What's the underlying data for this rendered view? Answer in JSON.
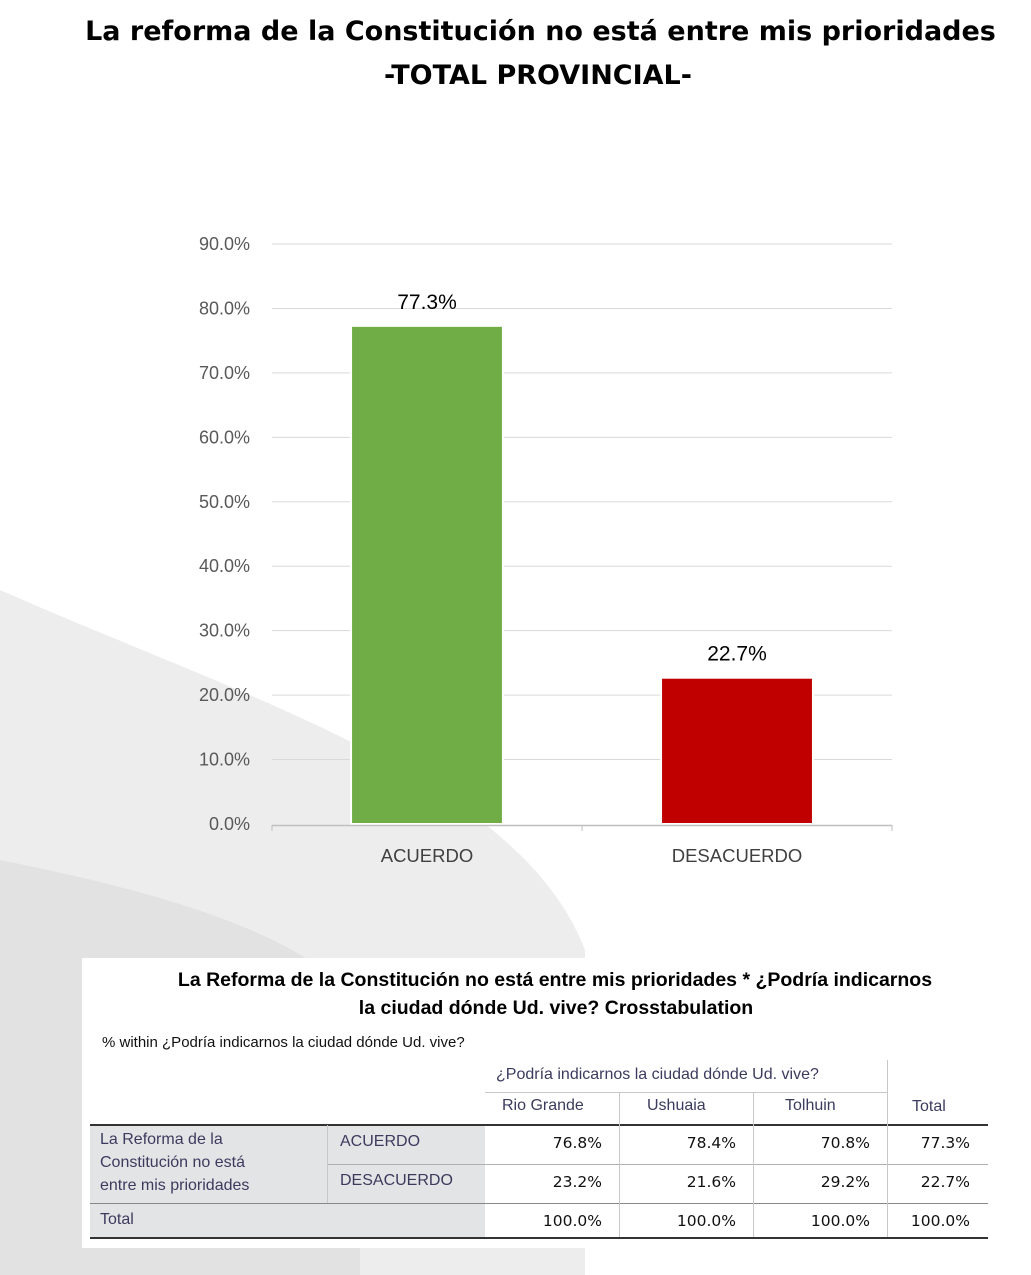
{
  "title": {
    "line1": "La reforma de la Constitución no está entre mis prioridades",
    "line2": "-TOTAL PROVINCIAL-"
  },
  "chart_data": {
    "type": "bar",
    "categories": [
      "ACUERDO",
      "DESACUERDO"
    ],
    "values": [
      77.3,
      22.7
    ],
    "data_labels": [
      "77.3%",
      "22.7%"
    ],
    "colors": [
      "#70ad47",
      "#c00000"
    ],
    "yticks": [
      "0.0%",
      "10.0%",
      "20.0%",
      "30.0%",
      "40.0%",
      "50.0%",
      "60.0%",
      "70.0%",
      "80.0%",
      "90.0%"
    ],
    "ylim": [
      0,
      90
    ],
    "grid": true,
    "legend": "none"
  },
  "crosstab": {
    "title_line1": "La Reforma de la Constitución no está entre mis prioridades * ¿Podría indicarnos",
    "title_line2": "la ciudad dónde Ud. vive? Crosstabulation",
    "note": "% within ¿Podría indicarnos la ciudad dónde Ud. vive?",
    "column_group": "¿Podría indicarnos la ciudad dónde Ud. vive?",
    "columns": [
      "Rio Grande",
      "Ushuaia",
      "Tolhuin",
      "Total"
    ],
    "row_group_lines": [
      "La Reforma de la",
      "Constitución no está",
      "entre mis prioridades"
    ],
    "rows": [
      {
        "label": "ACUERDO",
        "values": [
          "76.8%",
          "78.4%",
          "70.8%",
          "77.3%"
        ]
      },
      {
        "label": "DESACUERDO",
        "values": [
          "23.2%",
          "21.6%",
          "29.2%",
          "22.7%"
        ]
      }
    ],
    "total_label": "Total",
    "total_values": [
      "100.0%",
      "100.0%",
      "100.0%",
      "100.0%"
    ]
  }
}
